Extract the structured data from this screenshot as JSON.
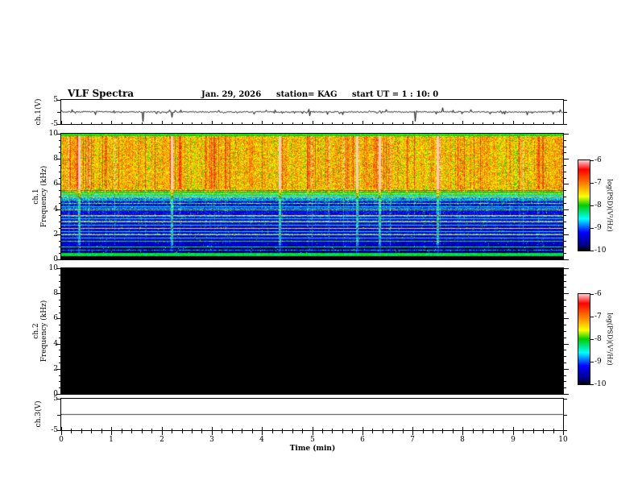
{
  "header": {
    "title": "VLF Spectra",
    "date": "Jan. 29, 2026",
    "station": "station= KAG",
    "start_ut": "start UT =  1 : 10: 0"
  },
  "panels": {
    "ch1_wave": {
      "label": "ch.1(V)",
      "yticks": [
        "5",
        "-5"
      ]
    },
    "ch1_spec": {
      "label_line1": "ch.1",
      "label_line2": "Frequency (kHz)",
      "yticks": [
        "10",
        "8",
        "6",
        "4",
        "2",
        "0"
      ]
    },
    "ch2_spec": {
      "label_line1": "ch.2",
      "label_line2": "Frequency (kHz)",
      "yticks": [
        "10",
        "8",
        "6",
        "4",
        "2",
        "0"
      ]
    },
    "ch3_wave": {
      "label": "ch.3(V)",
      "yticks": [
        "5",
        "-5"
      ]
    }
  },
  "xaxis": {
    "ticks": [
      "0",
      "1",
      "2",
      "3",
      "4",
      "5",
      "6",
      "7",
      "8",
      "9",
      "10"
    ],
    "label": "Time (min)"
  },
  "colorbar": {
    "label": "log(PSD)(V²/Hz)",
    "ticks": [
      "-6",
      "-7",
      "-8",
      "-9",
      "-10"
    ]
  },
  "colormap": {
    "stops": [
      {
        "v": -10.0,
        "c": "#000000"
      },
      {
        "v": -9.8,
        "c": "#000080"
      },
      {
        "v": -9.2,
        "c": "#0000ff"
      },
      {
        "v": -8.6,
        "c": "#00ffff"
      },
      {
        "v": -8.0,
        "c": "#00cc00"
      },
      {
        "v": -7.6,
        "c": "#ffff00"
      },
      {
        "v": -7.1,
        "c": "#ff9000"
      },
      {
        "v": -6.4,
        "c": "#ff0000"
      },
      {
        "v": -6.0,
        "c": "#ffc8c8"
      }
    ]
  },
  "chart_data": [
    {
      "type": "line",
      "name": "ch1_waveform",
      "title": "ch.1(V)",
      "xlim": [
        0,
        10
      ],
      "ylim": [
        -5,
        5
      ],
      "description": "noisy trace around 0 V with short bursts and a few large negative spikes",
      "seed": 7,
      "noise_v": 0.5,
      "burst_v": 2.2,
      "spikes": [
        {
          "t": 1.62,
          "v": -4.2
        },
        {
          "t": 2.2,
          "v": -2.3
        },
        {
          "t": 4.95,
          "v": -1.7
        },
        {
          "t": 7.05,
          "v": -4.0
        },
        {
          "t": 7.6,
          "v": 1.8
        },
        {
          "t": 9.3,
          "v": -1.3
        }
      ]
    },
    {
      "type": "heatmap",
      "name": "ch1_spectrogram",
      "xlim": [
        0,
        10
      ],
      "ylim": [
        0,
        10
      ],
      "zlim": [
        -10,
        -6
      ],
      "xlabel": "Time (min)",
      "ylabel": "ch.1 Frequency (kHz)",
      "zlabel": "log(PSD)(V²/Hz)",
      "description": "broadband VLF noise: strong red/orange emission 5.6-10 kHz with vertical striations and occasional white columns; blue field 1-4.5 kHz crossed by green/cyan harmonic lines every 0.25 kHz; narrow green line near 0.4 kHz; black below 0.3 kHz; green line at the 10 kHz top edge",
      "seed": 42,
      "harmonic_spacing_khz": 0.25,
      "strong_lines_khz": [
        2.0,
        2.5,
        3.05,
        3.5,
        4.1
      ],
      "bright_columns_min": [
        0.35,
        2.2,
        4.35,
        5.9,
        6.35,
        7.5
      ]
    },
    {
      "type": "heatmap",
      "name": "ch2_spectrogram",
      "xlim": [
        0,
        10
      ],
      "ylim": [
        0,
        10
      ],
      "zlim": [
        -10,
        -6
      ],
      "all_black": true,
      "description": "no signal - entire panel at or below -10 (solid black)"
    },
    {
      "type": "line",
      "name": "ch3_waveform",
      "title": "ch.3(V)",
      "xlim": [
        0,
        10
      ],
      "ylim": [
        -5,
        5
      ],
      "flat": 0,
      "description": "perfectly flat line at 0 V"
    }
  ]
}
